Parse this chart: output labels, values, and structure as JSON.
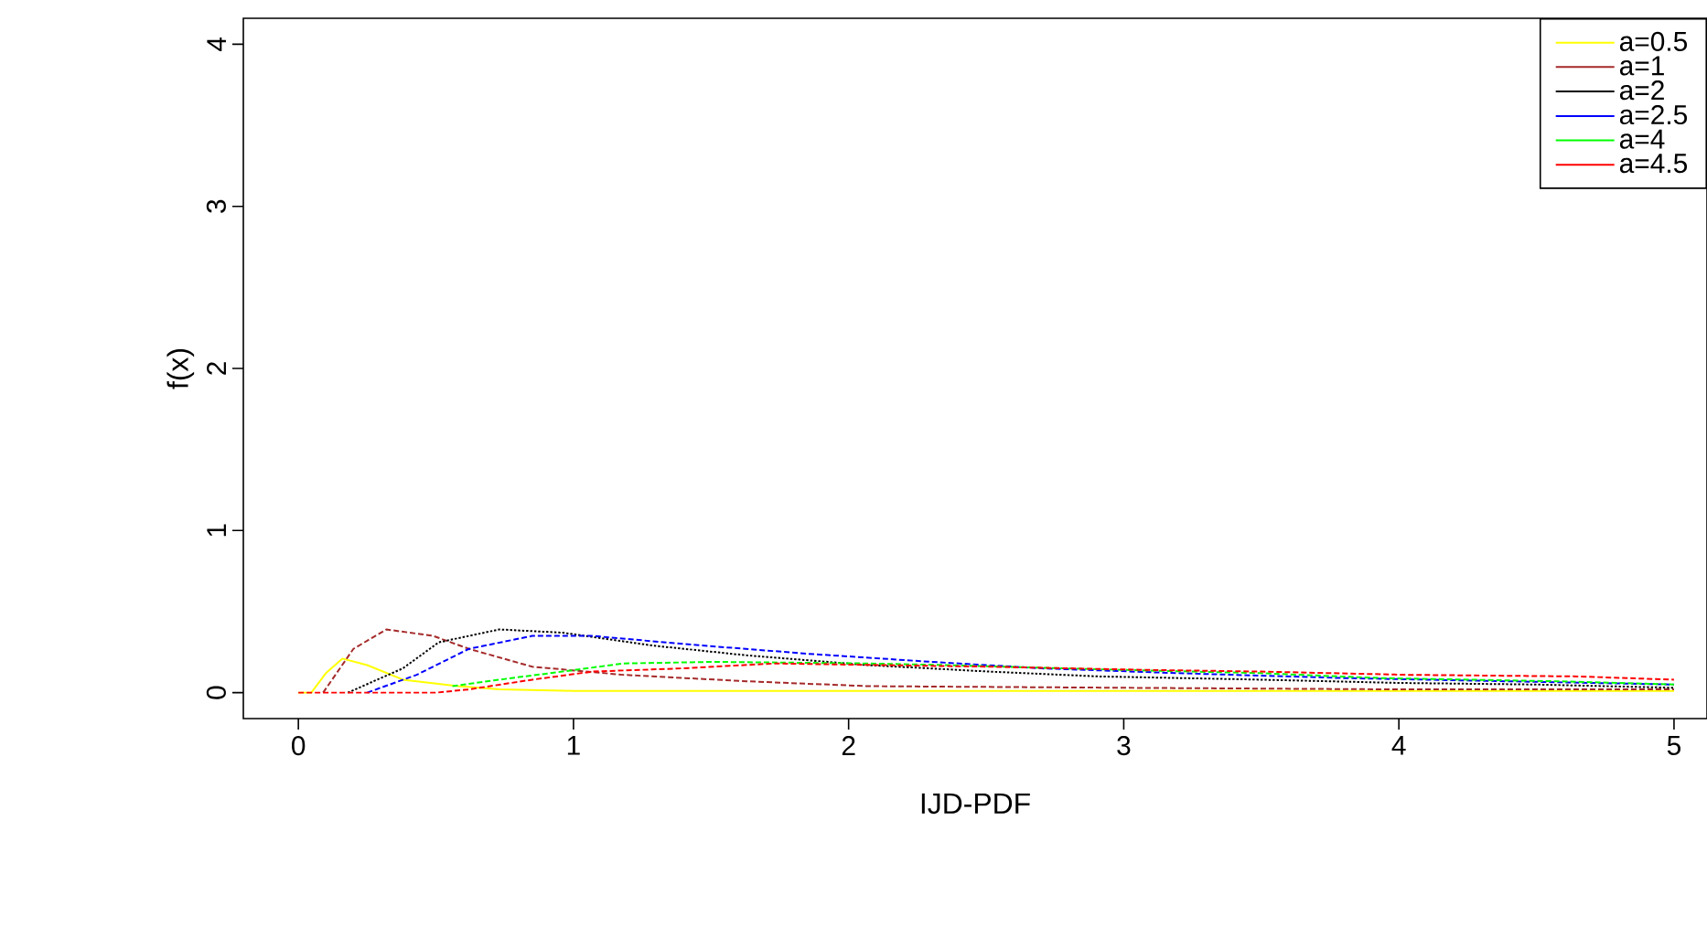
{
  "chart_data": {
    "type": "line",
    "xlabel": "IJD-PDF",
    "ylabel": "f(x)",
    "xlim": [
      -0.2,
      5.12
    ],
    "ylim": [
      -0.16,
      4.16
    ],
    "xticks": [
      0,
      1,
      2,
      3,
      4,
      5
    ],
    "yticks": [
      0,
      1,
      2,
      3,
      4
    ],
    "grid": false,
    "legend": "top right",
    "marker": "none",
    "series": [
      {
        "name": "a=0.5",
        "color": "#ffff00",
        "line_style": "solid",
        "x": [
          0,
          0.047,
          0.1,
          0.16,
          0.25,
          0.38,
          0.58,
          0.73,
          1.0,
          1.5,
          2.5,
          3.5,
          5
        ],
        "values": [
          0,
          0,
          0.12,
          0.21,
          0.17,
          0.08,
          0.04,
          0.02,
          0.01,
          0.01,
          0.01,
          0.01,
          0.01
        ]
      },
      {
        "name": "a=1",
        "color": "#a52a2a",
        "line_style": "dashed",
        "x": [
          0.09,
          0.2,
          0.32,
          0.49,
          0.62,
          0.85,
          1.18,
          1.63,
          2.07,
          3,
          4,
          5
        ],
        "values": [
          0,
          0.27,
          0.39,
          0.35,
          0.27,
          0.16,
          0.11,
          0.07,
          0.04,
          0.03,
          0.02,
          0.02
        ]
      },
      {
        "name": "a=2",
        "color": "#000000",
        "line_style": "dotted",
        "x": [
          0.18,
          0.38,
          0.51,
          0.73,
          0.96,
          1.29,
          1.63,
          2.07,
          2.51,
          2.91,
          3.5,
          4,
          4.5,
          5
        ],
        "values": [
          0,
          0.15,
          0.31,
          0.39,
          0.37,
          0.29,
          0.23,
          0.17,
          0.13,
          0.1,
          0.08,
          0.06,
          0.05,
          0.03
        ]
      },
      {
        "name": "a=2.5",
        "color": "#0000ff",
        "line_style": "dashed",
        "x": [
          0.25,
          0.43,
          0.62,
          0.85,
          1.07,
          1.4,
          1.85,
          2.3,
          2.7,
          3.2,
          3.8,
          4.4,
          5
        ],
        "values": [
          0,
          0.11,
          0.27,
          0.35,
          0.35,
          0.3,
          0.24,
          0.19,
          0.15,
          0.12,
          0.09,
          0.07,
          0.05
        ]
      },
      {
        "name": "a=4",
        "color": "#00ff00",
        "line_style": "dashed",
        "x": [
          0.56,
          0.73,
          0.96,
          1.18,
          1.51,
          2.07,
          2.36,
          3,
          3.5,
          3.93,
          4.58,
          5
        ],
        "values": [
          0.04,
          0.08,
          0.13,
          0.18,
          0.19,
          0.18,
          0.17,
          0.14,
          0.12,
          0.09,
          0.07,
          0.05
        ]
      },
      {
        "name": "a=4.5",
        "color": "#ff0000",
        "line_style": "dashed",
        "x": [
          0,
          0.5,
          0.62,
          0.85,
          1.07,
          1.4,
          1.73,
          2.51,
          3.09,
          3.5,
          4.03,
          4.65,
          5
        ],
        "values": [
          0,
          0,
          0.02,
          0.08,
          0.13,
          0.15,
          0.18,
          0.16,
          0.14,
          0.13,
          0.11,
          0.1,
          0.08
        ]
      }
    ]
  }
}
